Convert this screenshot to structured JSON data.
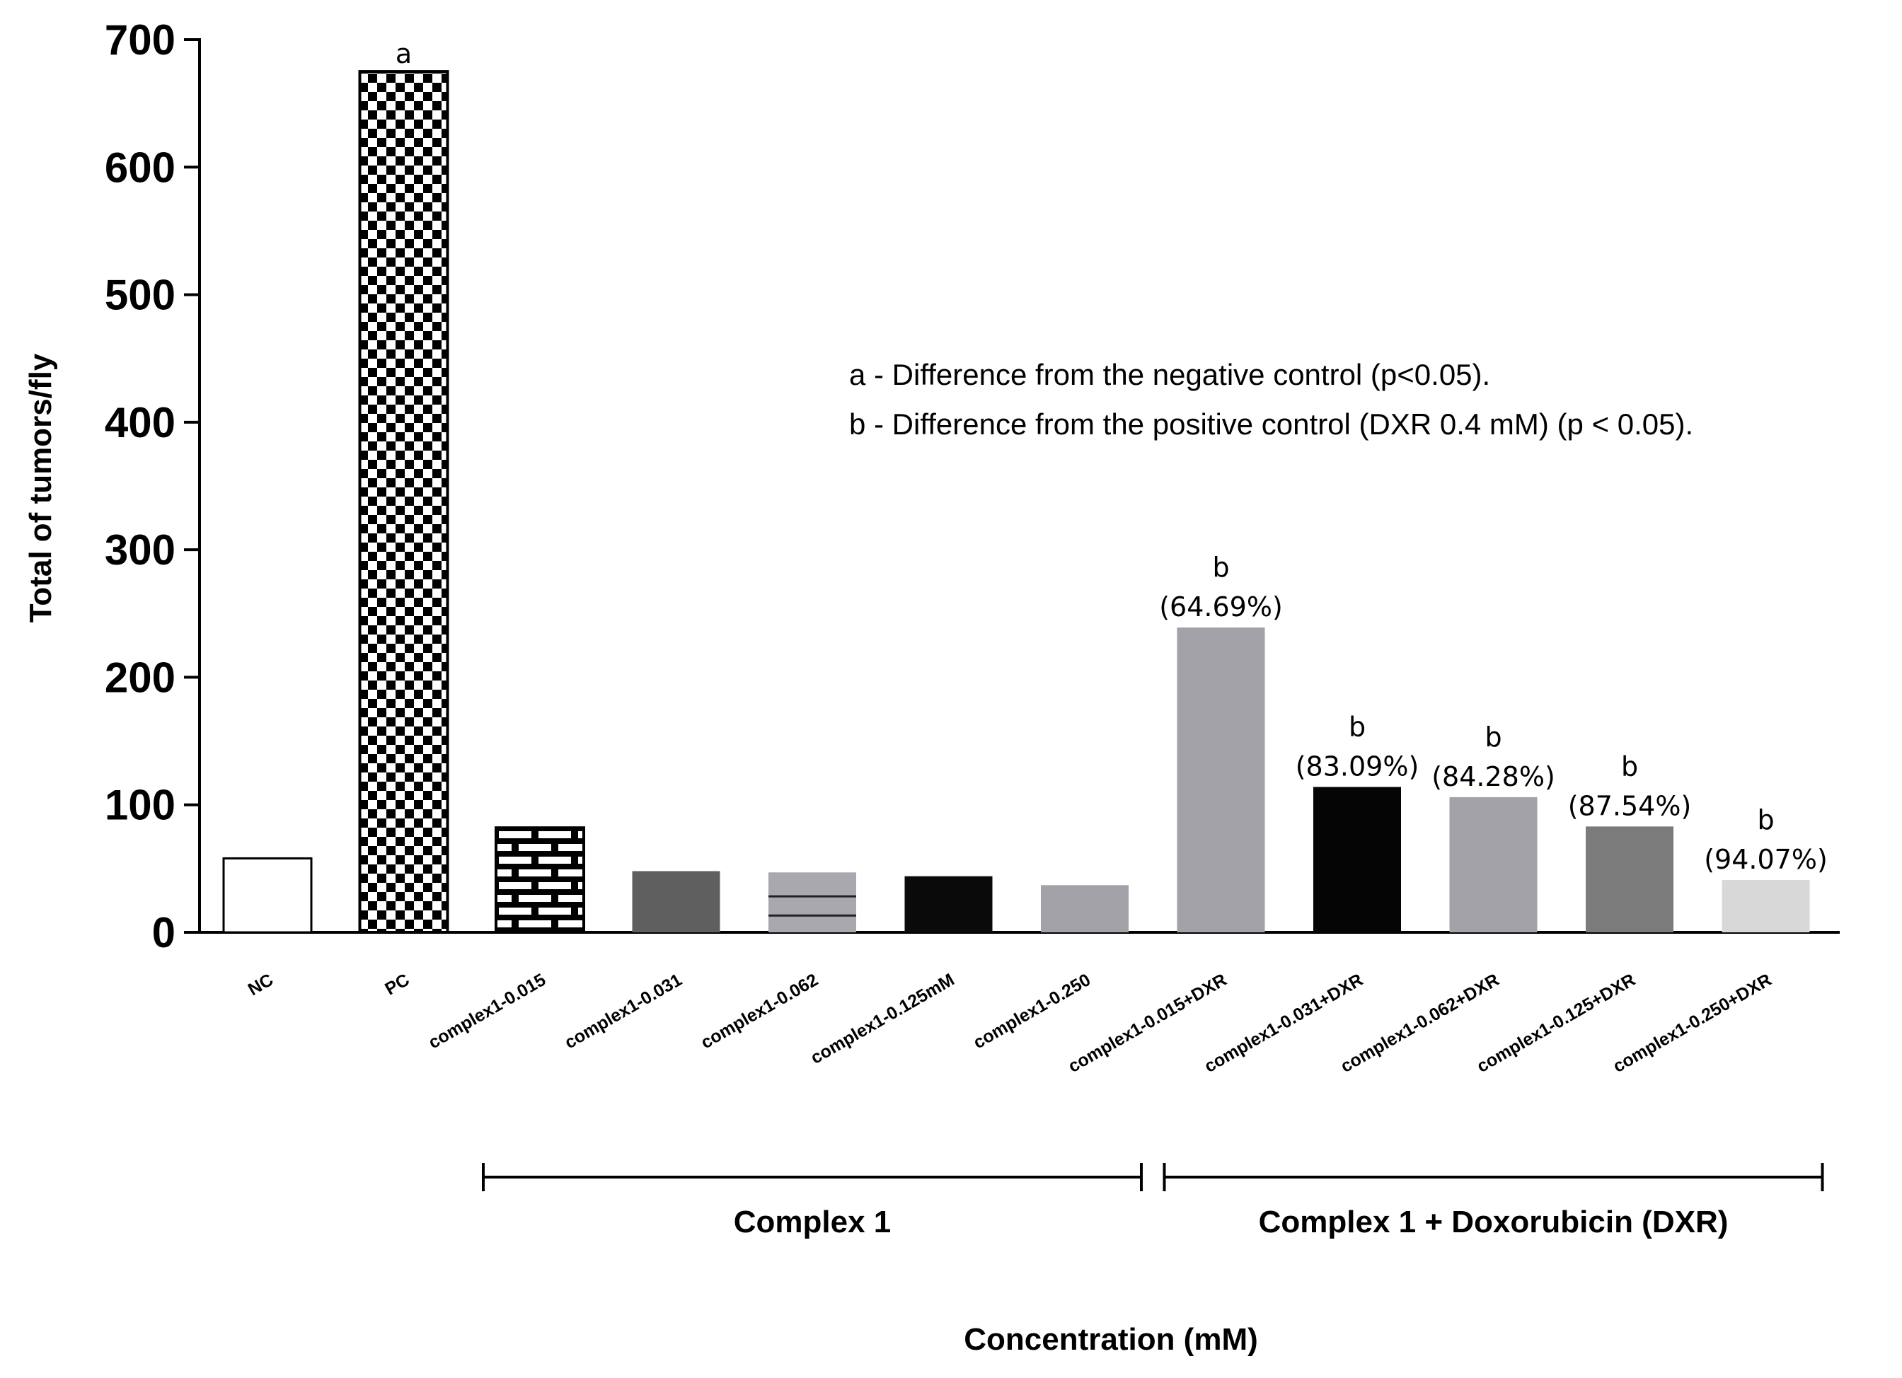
{
  "chart_data": {
    "type": "bar",
    "ylabel": "Total of tumors/fly",
    "xlabel": "Concentration (mM)",
    "ylim": [
      0,
      700
    ],
    "yticks": [
      0,
      100,
      200,
      300,
      400,
      500,
      600,
      700
    ],
    "categories": [
      "NC",
      "PC",
      "complex1-0.015",
      "complex1-0.031",
      "complex1-0.062",
      "complex1-0.125mM",
      "complex1-0.250",
      "complex1-0.015+DXR",
      "complex1-0.031+DXR",
      "complex1-0.062+DXR",
      "complex1-0.125+DXR",
      "complex1-0.250+DXR"
    ],
    "values": [
      58,
      675,
      82,
      48,
      47,
      44,
      37,
      239,
      114,
      106,
      83,
      41
    ],
    "fills": [
      "white",
      "checker",
      "brick",
      "#5f5f5f",
      "stripes",
      "#0a0a0a",
      "#a2a2a8",
      "#a2a2a8",
      "#050505",
      "#a2a2a8",
      "#7b7b7b",
      "#d8d8d8"
    ],
    "annotations": [
      {
        "index": 1,
        "letter": "a",
        "percent": ""
      },
      {
        "index": 7,
        "letter": "b",
        "percent": "(64.69%)"
      },
      {
        "index": 8,
        "letter": "b",
        "percent": "(83.09%)"
      },
      {
        "index": 9,
        "letter": "b",
        "percent": "(84.28%)"
      },
      {
        "index": 10,
        "letter": "b",
        "percent": "(87.54%)"
      },
      {
        "index": 11,
        "letter": "b",
        "percent": "(94.07%)"
      }
    ],
    "legend": [
      "a - Difference from the negative control (p<0.05).",
      "b - Difference from the  positive control (DXR 0.4 mM) (p < 0.05)."
    ],
    "groups": [
      {
        "label": "Complex 1",
        "from": 2,
        "to": 6
      },
      {
        "label": "Complex 1 + Doxorubicin (DXR)",
        "from": 7,
        "to": 11
      }
    ]
  }
}
